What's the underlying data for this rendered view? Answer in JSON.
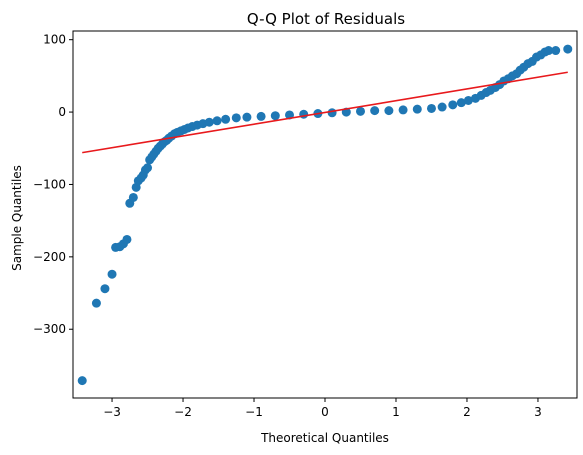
{
  "chart_data": {
    "type": "scatter",
    "title": "Q-Q Plot of Residuals",
    "xlabel": "Theoretical Quantiles",
    "ylabel": "Sample Quantiles",
    "xlim": [
      -3.55,
      3.55
    ],
    "ylim": [
      -395,
      112
    ],
    "xticks": [
      {
        "value": -3,
        "label": "−3"
      },
      {
        "value": -2,
        "label": "−2"
      },
      {
        "value": -1,
        "label": "−1"
      },
      {
        "value": 0,
        "label": "0"
      },
      {
        "value": 1,
        "label": "1"
      },
      {
        "value": 2,
        "label": "2"
      },
      {
        "value": 3,
        "label": "3"
      }
    ],
    "yticks": [
      {
        "value": 100,
        "label": "100"
      },
      {
        "value": 0,
        "label": "0"
      },
      {
        "value": -100,
        "label": "−100"
      },
      {
        "value": -200,
        "label": "−200"
      },
      {
        "value": -300,
        "label": "−300"
      }
    ],
    "grid": false,
    "series": [
      {
        "points": [
          [
            -3.42,
            -371
          ],
          [
            -3.22,
            -264
          ],
          [
            -3.1,
            -244
          ],
          [
            -3.0,
            -224
          ],
          [
            -2.95,
            -187
          ],
          [
            -2.89,
            -186
          ],
          [
            -2.84,
            -182
          ],
          [
            -2.79,
            -176
          ],
          [
            -2.75,
            -126
          ],
          [
            -2.7,
            -118
          ],
          [
            -2.66,
            -104
          ],
          [
            -2.63,
            -95
          ],
          [
            -2.59,
            -91
          ],
          [
            -2.56,
            -87
          ],
          [
            -2.53,
            -80
          ],
          [
            -2.5,
            -77
          ],
          [
            -2.47,
            -66
          ],
          [
            -2.44,
            -62
          ],
          [
            -2.41,
            -58
          ],
          [
            -2.38,
            -54
          ],
          [
            -2.35,
            -50
          ],
          [
            -2.32,
            -47
          ],
          [
            -2.29,
            -44
          ],
          [
            -2.26,
            -41
          ],
          [
            -2.23,
            -39
          ],
          [
            -2.2,
            -36
          ],
          [
            -2.16,
            -33
          ],
          [
            -2.12,
            -30
          ],
          [
            -2.08,
            -28
          ],
          [
            -2.03,
            -26
          ],
          [
            -1.98,
            -24
          ],
          [
            -1.93,
            -22
          ],
          [
            -1.87,
            -20
          ],
          [
            -1.8,
            -18
          ],
          [
            -1.72,
            -16
          ],
          [
            -1.63,
            -14
          ],
          [
            -1.52,
            -12
          ],
          [
            -1.4,
            -10
          ],
          [
            -1.25,
            -8
          ],
          [
            -1.1,
            -7
          ],
          [
            -0.9,
            -6
          ],
          [
            -0.7,
            -5
          ],
          [
            -0.5,
            -4
          ],
          [
            -0.3,
            -3
          ],
          [
            -0.1,
            -2
          ],
          [
            0.1,
            -1
          ],
          [
            0.3,
            0
          ],
          [
            0.5,
            1
          ],
          [
            0.7,
            2
          ],
          [
            0.9,
            2
          ],
          [
            1.1,
            3
          ],
          [
            1.3,
            4
          ],
          [
            1.5,
            5
          ],
          [
            1.65,
            7
          ],
          [
            1.8,
            10
          ],
          [
            1.92,
            13
          ],
          [
            2.02,
            16
          ],
          [
            2.12,
            19
          ],
          [
            2.2,
            23
          ],
          [
            2.27,
            27
          ],
          [
            2.33,
            30
          ],
          [
            2.4,
            34
          ],
          [
            2.46,
            38
          ],
          [
            2.52,
            43
          ],
          [
            2.58,
            46
          ],
          [
            2.64,
            50
          ],
          [
            2.7,
            53
          ],
          [
            2.75,
            58
          ],
          [
            2.8,
            62
          ],
          [
            2.86,
            67
          ],
          [
            2.92,
            70
          ],
          [
            2.98,
            76
          ],
          [
            3.04,
            79
          ],
          [
            3.1,
            83
          ],
          [
            3.15,
            85
          ],
          [
            3.25,
            85
          ],
          [
            3.42,
            87
          ]
        ]
      }
    ],
    "reference_line": {
      "x": [
        -3.42,
        3.42
      ],
      "y": [
        -56,
        55
      ]
    },
    "colors": {
      "points": "#1f77b4",
      "line": "#e8191c"
    }
  }
}
